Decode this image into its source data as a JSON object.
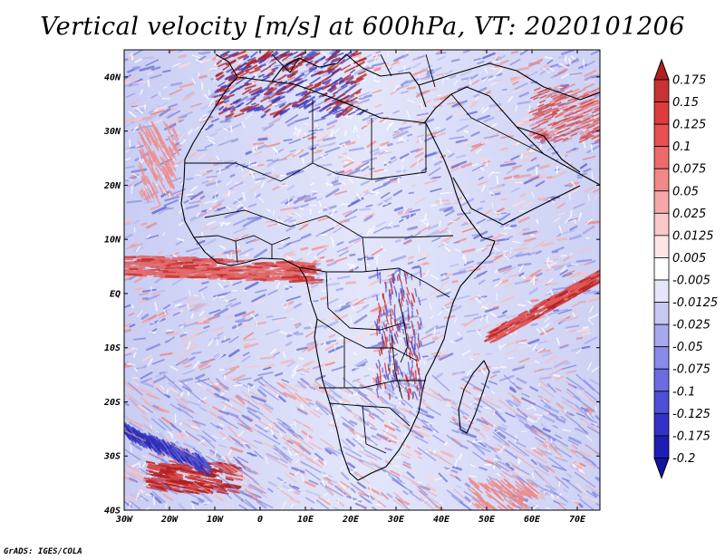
{
  "title": "Vertical velocity [m/s] at 600hPa, VT: 2020101206",
  "credit": "GrADS: IGES/COLA",
  "map": {
    "lon_range": [
      -30,
      75
    ],
    "lat_range": [
      -40,
      45
    ],
    "lon_ticks": [
      {
        "value": -30,
        "label": "30W"
      },
      {
        "value": -20,
        "label": "20W"
      },
      {
        "value": -10,
        "label": "10W"
      },
      {
        "value": 0,
        "label": "0"
      },
      {
        "value": 10,
        "label": "10E"
      },
      {
        "value": 20,
        "label": "20E"
      },
      {
        "value": 30,
        "label": "30E"
      },
      {
        "value": 40,
        "label": "40E"
      },
      {
        "value": 50,
        "label": "50E"
      },
      {
        "value": 60,
        "label": "60E"
      },
      {
        "value": 70,
        "label": "70E"
      }
    ],
    "lat_ticks": [
      {
        "value": 40,
        "label": "40N"
      },
      {
        "value": 30,
        "label": "30N"
      },
      {
        "value": 20,
        "label": "20N"
      },
      {
        "value": 10,
        "label": "10N"
      },
      {
        "value": 0,
        "label": "EQ"
      },
      {
        "value": -10,
        "label": "10S"
      },
      {
        "value": -20,
        "label": "20S"
      },
      {
        "value": -30,
        "label": "30S"
      },
      {
        "value": -40,
        "label": "40S"
      }
    ]
  },
  "colorbar": {
    "levels": [
      "0.175",
      "0.15",
      "0.125",
      "0.1",
      "0.075",
      "0.05",
      "0.025",
      "0.0125",
      "0.005",
      "-0.005",
      "-0.0125",
      "-0.025",
      "-0.05",
      "-0.075",
      "-0.1",
      "-0.125",
      "-0.175",
      "-0.2"
    ],
    "colors": [
      "#b41e1e",
      "#c83232",
      "#dc3c3c",
      "#e65050",
      "#ee6a6a",
      "#f28888",
      "#f6a8a8",
      "#fac8c8",
      "#fde6e6",
      "#ffffff",
      "#e6e6fa",
      "#c8c8f5",
      "#a8a8ef",
      "#8a8ae8",
      "#6c6ce0",
      "#4e4ed6",
      "#3232c8",
      "#1e1eb4",
      "#1414a0"
    ]
  }
}
